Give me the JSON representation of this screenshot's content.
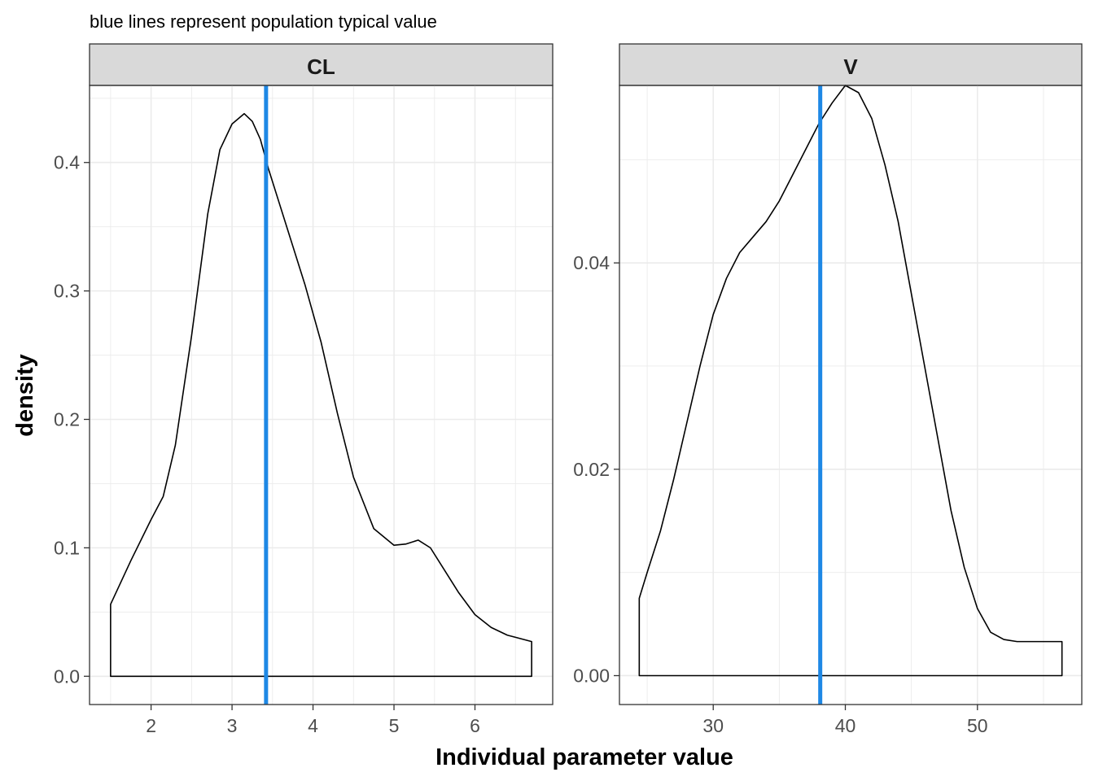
{
  "subtitle": "blue lines represent population typical value",
  "xlabel": "Individual parameter value",
  "ylabel": "density",
  "colors": {
    "typical_line": "#1E88E5",
    "density_line": "#000000",
    "strip_bg": "#D9D9D9",
    "grid": "#EBEBEB",
    "panel_border": "#333333"
  },
  "chart_data": [
    {
      "type": "area",
      "panel": "CL",
      "xlim": [
        1.24,
        6.96
      ],
      "ylim": [
        -0.022,
        0.46
      ],
      "x_ticks": [
        2,
        3,
        4,
        5,
        6
      ],
      "x_tick_labels": [
        "2",
        "3",
        "4",
        "5",
        "6"
      ],
      "y_ticks": [
        0.0,
        0.1,
        0.2,
        0.3,
        0.4
      ],
      "y_tick_labels": [
        "0.0",
        "0.1",
        "0.2",
        "0.3",
        "0.4"
      ],
      "typical_value": 3.42,
      "density": {
        "x": [
          1.5,
          1.75,
          2.0,
          2.15,
          2.3,
          2.5,
          2.7,
          2.85,
          3.0,
          3.15,
          3.25,
          3.35,
          3.45,
          3.6,
          3.75,
          3.9,
          4.1,
          4.3,
          4.5,
          4.75,
          5.0,
          5.15,
          5.3,
          5.45,
          5.6,
          5.8,
          6.0,
          6.2,
          6.4,
          6.7
        ],
        "y": [
          0.056,
          0.09,
          0.122,
          0.14,
          0.18,
          0.265,
          0.36,
          0.41,
          0.43,
          0.438,
          0.432,
          0.418,
          0.395,
          0.365,
          0.335,
          0.305,
          0.26,
          0.205,
          0.155,
          0.115,
          0.102,
          0.103,
          0.106,
          0.1,
          0.085,
          0.065,
          0.048,
          0.038,
          0.032,
          0.027
        ]
      }
    },
    {
      "type": "area",
      "panel": "V",
      "xlim": [
        22.9,
        57.9
      ],
      "ylim": [
        -0.0028,
        0.0572
      ],
      "x_ticks": [
        30,
        40,
        50
      ],
      "x_tick_labels": [
        "30",
        "40",
        "50"
      ],
      "y_ticks": [
        0.0,
        0.02,
        0.04
      ],
      "y_tick_labels": [
        "0.00",
        "0.02",
        "0.04"
      ],
      "typical_value": 38.1,
      "density": {
        "x": [
          24.4,
          25.0,
          26.0,
          27.0,
          28.0,
          29.0,
          30.0,
          31.0,
          32.0,
          33.0,
          34.0,
          35.0,
          36.0,
          37.0,
          38.0,
          39.0,
          40.0,
          41.0,
          42.0,
          43.0,
          44.0,
          45.0,
          46.0,
          47.0,
          48.0,
          49.0,
          50.0,
          51.0,
          52.0,
          53.0,
          54.0,
          56.4
        ],
        "y": [
          0.0075,
          0.01,
          0.014,
          0.019,
          0.0245,
          0.03,
          0.035,
          0.0385,
          0.041,
          0.0425,
          0.044,
          0.046,
          0.0485,
          0.051,
          0.0535,
          0.0555,
          0.0572,
          0.0565,
          0.054,
          0.0495,
          0.044,
          0.037,
          0.03,
          0.023,
          0.016,
          0.0105,
          0.0065,
          0.0042,
          0.0035,
          0.0033,
          0.0033,
          0.0033
        ]
      }
    }
  ]
}
